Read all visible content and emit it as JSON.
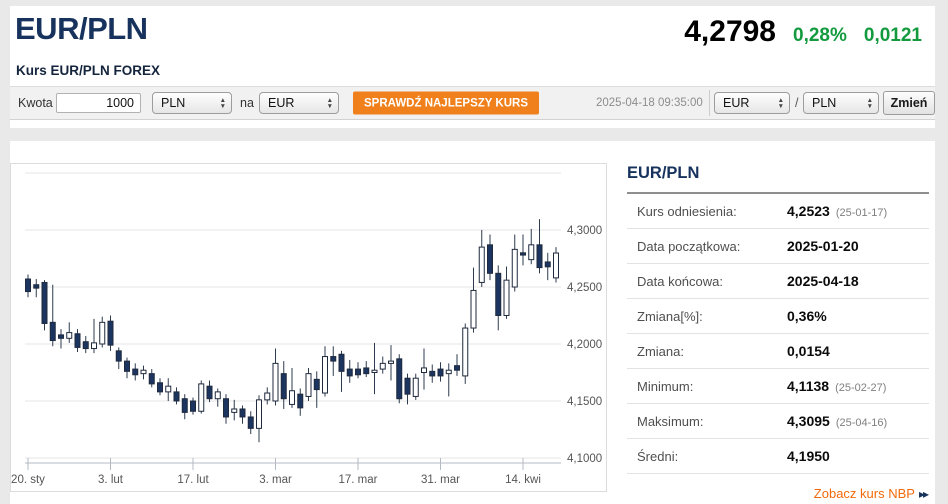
{
  "header": {
    "title": "EUR/PLN",
    "subtitle": "Kurs EUR/PLN FOREX",
    "price": "4,2798",
    "change_pct": "0,28%",
    "change_abs": "0,0121"
  },
  "toolbar": {
    "amount_label": "Kwota",
    "amount_value": "1000",
    "from_currency": "PLN",
    "na_label": "na",
    "to_currency": "EUR",
    "submit_label": "SPRAWDŹ NAJLEPSZY KURS",
    "timestamp": "2025-04-18 09:35:00",
    "pair_base": "EUR",
    "pair_separator": "/",
    "pair_quote": "PLN",
    "swap_label": "Zmień",
    "select_arrow_up": "▲",
    "select_arrow_down": "▼"
  },
  "sidebar": {
    "title": "EUR/PLN",
    "rows": [
      {
        "label": "Kurs odniesienia:",
        "value": "4,2523",
        "note": "(25-01-17)"
      },
      {
        "label": "Data początkowa:",
        "value": "2025-01-20",
        "note": ""
      },
      {
        "label": "Data końcowa:",
        "value": "2025-04-18",
        "note": ""
      },
      {
        "label": "Zmiana[%]:",
        "value": "0,36%",
        "note": ""
      },
      {
        "label": "Zmiana:",
        "value": "0,0154",
        "note": ""
      },
      {
        "label": "Minimum:",
        "value": "4,1138",
        "note": "(25-02-27)"
      },
      {
        "label": "Maksimum:",
        "value": "4,3095",
        "note": "(25-04-16)"
      },
      {
        "label": "Średni:",
        "value": "4,1950",
        "note": ""
      }
    ],
    "link_label": "Zobacz kurs NBP",
    "link_icon": "▸▸"
  },
  "chart_data": {
    "type": "candlestick",
    "pair": "EUR/PLN",
    "period": {
      "start": "2025-01-20",
      "end": "2025-04-18"
    },
    "grid": true,
    "ylim": [
      4.095,
      4.355
    ],
    "x_ticks": [
      {
        "index": 0,
        "label": "20. sty"
      },
      {
        "index": 10,
        "label": "3. lut"
      },
      {
        "index": 20,
        "label": "17. lut"
      },
      {
        "index": 30,
        "label": "3. mar"
      },
      {
        "index": 40,
        "label": "17. mar"
      },
      {
        "index": 50,
        "label": "31. mar"
      },
      {
        "index": 60,
        "label": "14. kwi"
      }
    ],
    "y_ticks": [
      {
        "value": 4.35,
        "label": ""
      },
      {
        "value": 4.3,
        "label": "4,3000"
      },
      {
        "value": 4.25,
        "label": "4,2500"
      },
      {
        "value": 4.2,
        "label": "4,2000"
      },
      {
        "value": 4.15,
        "label": "4,1500"
      },
      {
        "value": 4.1,
        "label": "4,1000"
      }
    ],
    "colors": {
      "up_fill": "#ffffff",
      "down_fill": "#1c3460",
      "outline": "#1f2a3d",
      "wick": "#2e3b4f",
      "grid": "#e6e6e6",
      "axis": "#b3bac3",
      "tick_text": "#555555"
    },
    "ohlc": [
      {
        "date": "2025-01-20",
        "o": 4.257,
        "h": 4.261,
        "l": 4.241,
        "c": 4.246
      },
      {
        "date": "2025-01-21",
        "o": 4.252,
        "h": 4.257,
        "l": 4.241,
        "c": 4.249
      },
      {
        "date": "2025-01-22",
        "o": 4.254,
        "h": 4.256,
        "l": 4.212,
        "c": 4.218
      },
      {
        "date": "2025-01-23",
        "o": 4.219,
        "h": 4.252,
        "l": 4.198,
        "c": 4.203
      },
      {
        "date": "2025-01-24",
        "o": 4.208,
        "h": 4.213,
        "l": 4.196,
        "c": 4.205
      },
      {
        "date": "2025-01-27",
        "o": 4.205,
        "h": 4.219,
        "l": 4.201,
        "c": 4.21
      },
      {
        "date": "2025-01-28",
        "o": 4.209,
        "h": 4.213,
        "l": 4.193,
        "c": 4.197
      },
      {
        "date": "2025-01-29",
        "o": 4.202,
        "h": 4.207,
        "l": 4.192,
        "c": 4.196
      },
      {
        "date": "2025-01-30",
        "o": 4.196,
        "h": 4.222,
        "l": 4.192,
        "c": 4.201
      },
      {
        "date": "2025-01-31",
        "o": 4.2,
        "h": 4.224,
        "l": 4.197,
        "c": 4.219
      },
      {
        "date": "2025-02-03",
        "o": 4.22,
        "h": 4.225,
        "l": 4.194,
        "c": 4.199
      },
      {
        "date": "2025-02-04",
        "o": 4.194,
        "h": 4.197,
        "l": 4.178,
        "c": 4.185
      },
      {
        "date": "2025-02-05",
        "o": 4.185,
        "h": 4.188,
        "l": 4.17,
        "c": 4.176
      },
      {
        "date": "2025-02-06",
        "o": 4.178,
        "h": 4.183,
        "l": 4.168,
        "c": 4.173
      },
      {
        "date": "2025-02-07",
        "o": 4.174,
        "h": 4.181,
        "l": 4.169,
        "c": 4.177
      },
      {
        "date": "2025-02-10",
        "o": 4.174,
        "h": 4.178,
        "l": 4.162,
        "c": 4.165
      },
      {
        "date": "2025-02-11",
        "o": 4.166,
        "h": 4.17,
        "l": 4.155,
        "c": 4.158
      },
      {
        "date": "2025-02-12",
        "o": 4.158,
        "h": 4.17,
        "l": 4.15,
        "c": 4.163
      },
      {
        "date": "2025-02-13",
        "o": 4.158,
        "h": 4.162,
        "l": 4.147,
        "c": 4.15
      },
      {
        "date": "2025-02-14",
        "o": 4.152,
        "h": 4.156,
        "l": 4.134,
        "c": 4.14
      },
      {
        "date": "2025-02-17",
        "o": 4.15,
        "h": 4.153,
        "l": 4.138,
        "c": 4.141
      },
      {
        "date": "2025-02-18",
        "o": 4.141,
        "h": 4.168,
        "l": 4.139,
        "c": 4.165
      },
      {
        "date": "2025-02-19",
        "o": 4.163,
        "h": 4.168,
        "l": 4.149,
        "c": 4.152
      },
      {
        "date": "2025-02-20",
        "o": 4.152,
        "h": 4.161,
        "l": 4.145,
        "c": 4.158
      },
      {
        "date": "2025-02-21",
        "o": 4.152,
        "h": 4.156,
        "l": 4.13,
        "c": 4.136
      },
      {
        "date": "2025-02-24",
        "o": 4.14,
        "h": 4.151,
        "l": 4.133,
        "c": 4.143
      },
      {
        "date": "2025-02-25",
        "o": 4.143,
        "h": 4.146,
        "l": 4.13,
        "c": 4.136
      },
      {
        "date": "2025-02-26",
        "o": 4.136,
        "h": 4.141,
        "l": 4.121,
        "c": 4.126
      },
      {
        "date": "2025-02-27",
        "o": 4.126,
        "h": 4.155,
        "l": 4.1138,
        "c": 4.151
      },
      {
        "date": "2025-02-28",
        "o": 4.151,
        "h": 4.162,
        "l": 4.147,
        "c": 4.157
      },
      {
        "date": "2025-03-03",
        "o": 4.15,
        "h": 4.196,
        "l": 4.146,
        "c": 4.183
      },
      {
        "date": "2025-03-04",
        "o": 4.174,
        "h": 4.185,
        "l": 4.143,
        "c": 4.152
      },
      {
        "date": "2025-03-05",
        "o": 4.147,
        "h": 4.179,
        "l": 4.144,
        "c": 4.159
      },
      {
        "date": "2025-03-06",
        "o": 4.156,
        "h": 4.161,
        "l": 4.137,
        "c": 4.144
      },
      {
        "date": "2025-03-07",
        "o": 4.154,
        "h": 4.179,
        "l": 4.15,
        "c": 4.174
      },
      {
        "date": "2025-03-10",
        "o": 4.169,
        "h": 4.176,
        "l": 4.144,
        "c": 4.16
      },
      {
        "date": "2025-03-11",
        "o": 4.157,
        "h": 4.198,
        "l": 4.154,
        "c": 4.189
      },
      {
        "date": "2025-03-12",
        "o": 4.189,
        "h": 4.198,
        "l": 4.172,
        "c": 4.185
      },
      {
        "date": "2025-03-13",
        "o": 4.191,
        "h": 4.194,
        "l": 4.158,
        "c": 4.176
      },
      {
        "date": "2025-03-14",
        "o": 4.178,
        "h": 4.186,
        "l": 4.166,
        "c": 4.172
      },
      {
        "date": "2025-03-17",
        "o": 4.178,
        "h": 4.184,
        "l": 4.17,
        "c": 4.173
      },
      {
        "date": "2025-03-18",
        "o": 4.179,
        "h": 4.185,
        "l": 4.171,
        "c": 4.174
      },
      {
        "date": "2025-03-19",
        "o": 4.175,
        "h": 4.201,
        "l": 4.156,
        "c": 4.177
      },
      {
        "date": "2025-03-20",
        "o": 4.178,
        "h": 4.189,
        "l": 4.174,
        "c": 4.183
      },
      {
        "date": "2025-03-21",
        "o": 4.183,
        "h": 4.199,
        "l": 4.168,
        "c": 4.185
      },
      {
        "date": "2025-03-24",
        "o": 4.187,
        "h": 4.191,
        "l": 4.148,
        "c": 4.152
      },
      {
        "date": "2025-03-25",
        "o": 4.17,
        "h": 4.174,
        "l": 4.147,
        "c": 4.156
      },
      {
        "date": "2025-03-26",
        "o": 4.154,
        "h": 4.174,
        "l": 4.151,
        "c": 4.17
      },
      {
        "date": "2025-03-27",
        "o": 4.175,
        "h": 4.196,
        "l": 4.16,
        "c": 4.179
      },
      {
        "date": "2025-03-28",
        "o": 4.176,
        "h": 4.182,
        "l": 4.166,
        "c": 4.172
      },
      {
        "date": "2025-03-31",
        "o": 4.178,
        "h": 4.184,
        "l": 4.167,
        "c": 4.172
      },
      {
        "date": "2025-04-01",
        "o": 4.174,
        "h": 4.183,
        "l": 4.154,
        "c": 4.177
      },
      {
        "date": "2025-04-02",
        "o": 4.181,
        "h": 4.191,
        "l": 4.172,
        "c": 4.177
      },
      {
        "date": "2025-04-03",
        "o": 4.172,
        "h": 4.218,
        "l": 4.165,
        "c": 4.214
      },
      {
        "date": "2025-04-04",
        "o": 4.214,
        "h": 4.267,
        "l": 4.21,
        "c": 4.247
      },
      {
        "date": "2025-04-07",
        "o": 4.254,
        "h": 4.3,
        "l": 4.25,
        "c": 4.285
      },
      {
        "date": "2025-04-08",
        "o": 4.287,
        "h": 4.296,
        "l": 4.256,
        "c": 4.262
      },
      {
        "date": "2025-04-09",
        "o": 4.262,
        "h": 4.269,
        "l": 4.212,
        "c": 4.225
      },
      {
        "date": "2025-04-10",
        "o": 4.225,
        "h": 4.268,
        "l": 4.222,
        "c": 4.256
      },
      {
        "date": "2025-04-11",
        "o": 4.25,
        "h": 4.296,
        "l": 4.246,
        "c": 4.283
      },
      {
        "date": "2025-04-14",
        "o": 4.28,
        "h": 4.296,
        "l": 4.269,
        "c": 4.278
      },
      {
        "date": "2025-04-15",
        "o": 4.274,
        "h": 4.301,
        "l": 4.27,
        "c": 4.287
      },
      {
        "date": "2025-04-16",
        "o": 4.287,
        "h": 4.3095,
        "l": 4.262,
        "c": 4.267
      },
      {
        "date": "2025-04-17",
        "o": 4.272,
        "h": 4.28,
        "l": 4.256,
        "c": 4.2677
      },
      {
        "date": "2025-04-18",
        "o": 4.258,
        "h": 4.285,
        "l": 4.254,
        "c": 4.2798
      }
    ]
  }
}
